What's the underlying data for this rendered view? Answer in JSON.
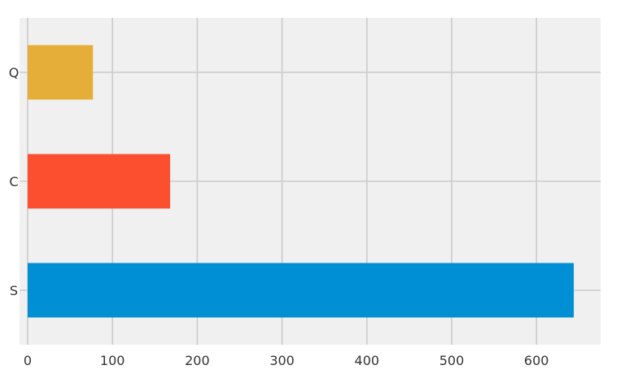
{
  "chart_data": {
    "type": "bar",
    "orientation": "horizontal",
    "title": "",
    "xlabel": "",
    "ylabel": "",
    "categories": [
      "S",
      "C",
      "Q"
    ],
    "values": [
      644,
      168,
      77
    ],
    "bar_colors": [
      "#008fd5",
      "#fc4f30",
      "#e5ae38"
    ],
    "xlim": [
      0,
      678
    ],
    "x_ticks": [
      0,
      100,
      200,
      300,
      400,
      500,
      600
    ],
    "grid": true,
    "legend": "none",
    "plot_background": "#f0f0f0",
    "grid_color": "#cbcbcb"
  }
}
